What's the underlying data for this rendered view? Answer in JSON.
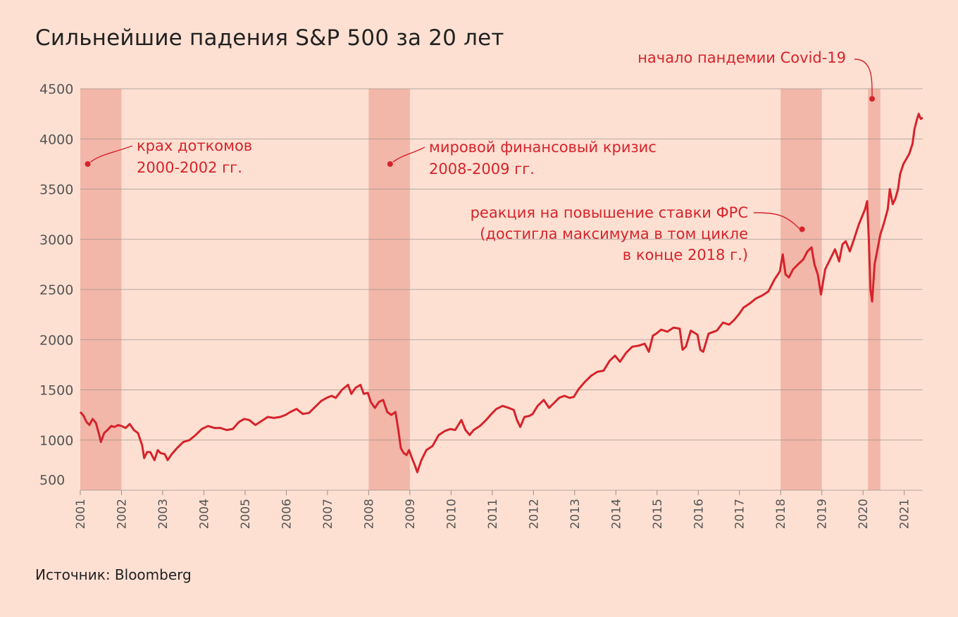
{
  "page": {
    "title": "Сильнейшие падения S&P 500 за 20 лет",
    "source": "Источник: Bloomberg"
  },
  "colors": {
    "background": "#fde0d2",
    "line": "#d6232b",
    "shade": "#f2b7a9",
    "grid": "#9a8f8a",
    "annotation": "#d6232b"
  },
  "chart_data": {
    "type": "line",
    "title": "Сильнейшие падения S&P 500 за 20 лет",
    "xlabel": "",
    "ylabel": "",
    "xlim": [
      2001.0,
      2021.45
    ],
    "ylim": [
      500,
      4500
    ],
    "grid": true,
    "y_ticks": [
      500,
      1000,
      1500,
      2000,
      2500,
      3000,
      3500,
      4000,
      4500
    ],
    "x_ticks": [
      {
        "value": 2001.0,
        "label": "2001"
      },
      {
        "value": 2002.0,
        "label": "2002"
      },
      {
        "value": 2003.0,
        "label": "2003"
      },
      {
        "value": 2004.0,
        "label": "2004"
      },
      {
        "value": 2005.0,
        "label": "2005"
      },
      {
        "value": 2006.0,
        "label": "2006"
      },
      {
        "value": 2007.0,
        "label": "2007"
      },
      {
        "value": 2008.0,
        "label": "2008"
      },
      {
        "value": 2009.0,
        "label": "2009"
      },
      {
        "value": 2010.0,
        "label": "2010"
      },
      {
        "value": 2011.0,
        "label": "2011"
      },
      {
        "value": 2012.0,
        "label": "2012"
      },
      {
        "value": 2013.0,
        "label": "2013"
      },
      {
        "value": 2014.0,
        "label": "2014"
      },
      {
        "value": 2015.0,
        "label": "2015"
      },
      {
        "value": 2016.0,
        "label": "2016"
      },
      {
        "value": 2017.0,
        "label": "2017"
      },
      {
        "value": 2018.0,
        "label": "2018"
      },
      {
        "value": 2019.0,
        "label": "2019"
      },
      {
        "value": 2020.0,
        "label": "2020"
      },
      {
        "value": 2021.0,
        "label": "2021"
      }
    ],
    "shaded_periods": [
      {
        "start": 2001.0,
        "end": 2002.0
      },
      {
        "start": 2008.0,
        "end": 2009.0
      },
      {
        "start": 2018.0,
        "end": 2019.0
      },
      {
        "start": 2020.12,
        "end": 2020.42
      }
    ],
    "series": [
      {
        "name": "S&P 500",
        "points": [
          [
            2001.0,
            1280
          ],
          [
            2001.08,
            1240
          ],
          [
            2001.15,
            1180
          ],
          [
            2001.22,
            1150
          ],
          [
            2001.3,
            1210
          ],
          [
            2001.38,
            1170
          ],
          [
            2001.46,
            1050
          ],
          [
            2001.5,
            980
          ],
          [
            2001.58,
            1070
          ],
          [
            2001.66,
            1100
          ],
          [
            2001.75,
            1140
          ],
          [
            2001.83,
            1130
          ],
          [
            2001.92,
            1150
          ],
          [
            2002.0,
            1140
          ],
          [
            2002.1,
            1120
          ],
          [
            2002.2,
            1160
          ],
          [
            2002.3,
            1100
          ],
          [
            2002.4,
            1070
          ],
          [
            2002.5,
            950
          ],
          [
            2002.55,
            820
          ],
          [
            2002.62,
            880
          ],
          [
            2002.7,
            880
          ],
          [
            2002.8,
            800
          ],
          [
            2002.88,
            900
          ],
          [
            2002.95,
            870
          ],
          [
            2003.05,
            860
          ],
          [
            2003.12,
            800
          ],
          [
            2003.22,
            860
          ],
          [
            2003.35,
            920
          ],
          [
            2003.5,
            980
          ],
          [
            2003.65,
            1000
          ],
          [
            2003.8,
            1050
          ],
          [
            2003.95,
            1110
          ],
          [
            2004.1,
            1140
          ],
          [
            2004.25,
            1120
          ],
          [
            2004.4,
            1120
          ],
          [
            2004.55,
            1100
          ],
          [
            2004.7,
            1110
          ],
          [
            2004.85,
            1180
          ],
          [
            2004.98,
            1210
          ],
          [
            2005.1,
            1200
          ],
          [
            2005.25,
            1150
          ],
          [
            2005.4,
            1190
          ],
          [
            2005.55,
            1230
          ],
          [
            2005.7,
            1220
          ],
          [
            2005.85,
            1230
          ],
          [
            2005.98,
            1250
          ],
          [
            2006.1,
            1280
          ],
          [
            2006.25,
            1310
          ],
          [
            2006.4,
            1260
          ],
          [
            2006.55,
            1270
          ],
          [
            2006.7,
            1330
          ],
          [
            2006.85,
            1390
          ],
          [
            2006.98,
            1420
          ],
          [
            2007.1,
            1440
          ],
          [
            2007.2,
            1420
          ],
          [
            2007.35,
            1500
          ],
          [
            2007.5,
            1550
          ],
          [
            2007.58,
            1460
          ],
          [
            2007.68,
            1520
          ],
          [
            2007.8,
            1550
          ],
          [
            2007.88,
            1460
          ],
          [
            2007.98,
            1470
          ],
          [
            2008.05,
            1380
          ],
          [
            2008.15,
            1320
          ],
          [
            2008.25,
            1380
          ],
          [
            2008.35,
            1400
          ],
          [
            2008.45,
            1280
          ],
          [
            2008.55,
            1250
          ],
          [
            2008.65,
            1280
          ],
          [
            2008.72,
            1100
          ],
          [
            2008.78,
            920
          ],
          [
            2008.85,
            870
          ],
          [
            2008.92,
            850
          ],
          [
            2008.98,
            900
          ],
          [
            2009.05,
            820
          ],
          [
            2009.12,
            750
          ],
          [
            2009.18,
            680
          ],
          [
            2009.28,
            800
          ],
          [
            2009.4,
            900
          ],
          [
            2009.55,
            940
          ],
          [
            2009.7,
            1050
          ],
          [
            2009.85,
            1090
          ],
          [
            2009.98,
            1110
          ],
          [
            2010.1,
            1100
          ],
          [
            2010.25,
            1200
          ],
          [
            2010.35,
            1100
          ],
          [
            2010.45,
            1050
          ],
          [
            2010.55,
            1100
          ],
          [
            2010.7,
            1140
          ],
          [
            2010.85,
            1200
          ],
          [
            2010.98,
            1260
          ],
          [
            2011.1,
            1310
          ],
          [
            2011.25,
            1340
          ],
          [
            2011.4,
            1320
          ],
          [
            2011.52,
            1300
          ],
          [
            2011.6,
            1200
          ],
          [
            2011.68,
            1130
          ],
          [
            2011.78,
            1230
          ],
          [
            2011.9,
            1240
          ],
          [
            2011.98,
            1260
          ],
          [
            2012.1,
            1340
          ],
          [
            2012.25,
            1400
          ],
          [
            2012.38,
            1320
          ],
          [
            2012.5,
            1370
          ],
          [
            2012.62,
            1420
          ],
          [
            2012.75,
            1440
          ],
          [
            2012.88,
            1420
          ],
          [
            2012.98,
            1430
          ],
          [
            2013.1,
            1510
          ],
          [
            2013.25,
            1580
          ],
          [
            2013.4,
            1640
          ],
          [
            2013.55,
            1680
          ],
          [
            2013.7,
            1690
          ],
          [
            2013.85,
            1790
          ],
          [
            2013.98,
            1840
          ],
          [
            2014.1,
            1780
          ],
          [
            2014.25,
            1870
          ],
          [
            2014.4,
            1930
          ],
          [
            2014.55,
            1940
          ],
          [
            2014.7,
            1960
          ],
          [
            2014.8,
            1880
          ],
          [
            2014.9,
            2040
          ],
          [
            2014.98,
            2060
          ],
          [
            2015.1,
            2100
          ],
          [
            2015.25,
            2080
          ],
          [
            2015.4,
            2120
          ],
          [
            2015.55,
            2110
          ],
          [
            2015.62,
            1900
          ],
          [
            2015.7,
            1930
          ],
          [
            2015.82,
            2090
          ],
          [
            2015.98,
            2050
          ],
          [
            2016.05,
            1900
          ],
          [
            2016.12,
            1880
          ],
          [
            2016.25,
            2060
          ],
          [
            2016.45,
            2090
          ],
          [
            2016.6,
            2170
          ],
          [
            2016.75,
            2150
          ],
          [
            2016.88,
            2200
          ],
          [
            2016.98,
            2250
          ],
          [
            2017.1,
            2320
          ],
          [
            2017.25,
            2360
          ],
          [
            2017.4,
            2410
          ],
          [
            2017.55,
            2440
          ],
          [
            2017.7,
            2480
          ],
          [
            2017.85,
            2600
          ],
          [
            2017.98,
            2680
          ],
          [
            2018.05,
            2850
          ],
          [
            2018.12,
            2650
          ],
          [
            2018.2,
            2620
          ],
          [
            2018.3,
            2700
          ],
          [
            2018.42,
            2750
          ],
          [
            2018.55,
            2800
          ],
          [
            2018.65,
            2880
          ],
          [
            2018.75,
            2920
          ],
          [
            2018.82,
            2750
          ],
          [
            2018.9,
            2650
          ],
          [
            2018.98,
            2450
          ],
          [
            2019.08,
            2700
          ],
          [
            2019.2,
            2800
          ],
          [
            2019.32,
            2900
          ],
          [
            2019.42,
            2780
          ],
          [
            2019.5,
            2950
          ],
          [
            2019.58,
            2980
          ],
          [
            2019.68,
            2880
          ],
          [
            2019.78,
            3000
          ],
          [
            2019.9,
            3150
          ],
          [
            2019.98,
            3230
          ],
          [
            2020.05,
            3300
          ],
          [
            2020.1,
            3380
          ],
          [
            2020.14,
            3000
          ],
          [
            2020.18,
            2500
          ],
          [
            2020.22,
            2380
          ],
          [
            2020.28,
            2750
          ],
          [
            2020.35,
            2900
          ],
          [
            2020.42,
            3050
          ],
          [
            2020.5,
            3150
          ],
          [
            2020.6,
            3300
          ],
          [
            2020.65,
            3500
          ],
          [
            2020.72,
            3350
          ],
          [
            2020.78,
            3400
          ],
          [
            2020.85,
            3500
          ],
          [
            2020.9,
            3650
          ],
          [
            2020.98,
            3750
          ],
          [
            2021.05,
            3800
          ],
          [
            2021.12,
            3850
          ],
          [
            2021.2,
            3950
          ],
          [
            2021.25,
            4100
          ],
          [
            2021.3,
            4180
          ],
          [
            2021.35,
            4250
          ],
          [
            2021.4,
            4200
          ],
          [
            2021.45,
            4210
          ]
        ]
      }
    ],
    "annotations": [
      {
        "lines": [
          "крах доткомов",
          "2000-2002 гг."
        ],
        "marker": [
          2001.18,
          3750
        ]
      },
      {
        "lines": [
          "мировой финансовый кризис",
          "2008-2009 гг."
        ],
        "marker": [
          2008.52,
          3750
        ]
      },
      {
        "lines": [
          "реакция на повышение ставки ФРС",
          "(достигла максимума в том цикле",
          "в конце 2018 г.)"
        ],
        "marker": [
          2018.52,
          3100
        ]
      },
      {
        "lines": [
          "начало пандемии Covid-19"
        ],
        "marker": [
          2020.22,
          4400
        ]
      }
    ]
  }
}
